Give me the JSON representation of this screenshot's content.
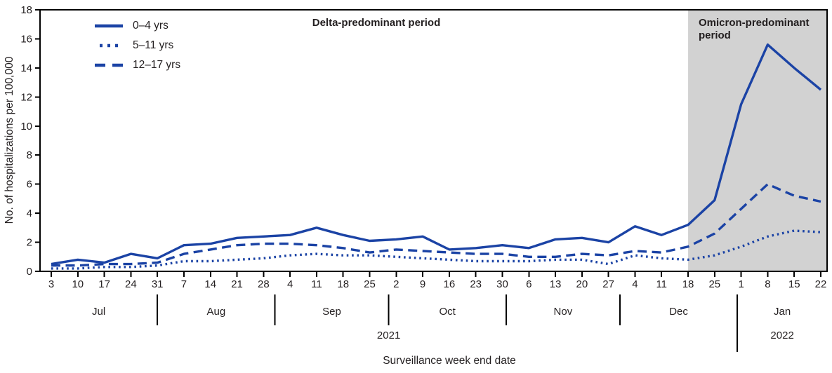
{
  "figure": {
    "ylabel": "No. of hospitalizations per 100,000",
    "xlabel": "Surveillance week end date",
    "delta_period_label": "Delta-predominant period",
    "omicron_period_label": "Omicron-predominant period"
  },
  "chart_data": {
    "type": "line",
    "title": "",
    "xlabel": "Surveillance week end date",
    "ylabel": "No. of hospitalizations per 100,000",
    "ylim": [
      0,
      18
    ],
    "yticks": [
      0,
      2,
      4,
      6,
      8,
      10,
      12,
      14,
      16,
      18
    ],
    "grid": false,
    "legend_position": "top-left-inside",
    "months": [
      {
        "label": "Jul",
        "weeks": [
          "3",
          "10",
          "17",
          "24",
          "31"
        ]
      },
      {
        "label": "Aug",
        "weeks": [
          "7",
          "14",
          "21",
          "28"
        ]
      },
      {
        "label": "Sep",
        "weeks": [
          "4",
          "11",
          "18",
          "25"
        ]
      },
      {
        "label": "Oct",
        "weeks": [
          "2",
          "9",
          "16",
          "23",
          "30"
        ]
      },
      {
        "label": "Nov",
        "weeks": [
          "6",
          "13",
          "20",
          "27"
        ]
      },
      {
        "label": "Dec",
        "weeks": [
          "4",
          "11",
          "18",
          "25"
        ]
      },
      {
        "label": "Jan",
        "weeks": [
          "1",
          "8",
          "15",
          "22"
        ]
      }
    ],
    "years": [
      "2021",
      "2022"
    ],
    "omicron_start_week_index": 24,
    "series": [
      {
        "name": "0–4 yrs",
        "style": "solid",
        "values": [
          0.5,
          0.8,
          0.6,
          1.2,
          0.9,
          1.8,
          1.9,
          2.3,
          2.4,
          2.5,
          3.0,
          2.5,
          2.1,
          2.2,
          2.4,
          1.5,
          1.6,
          1.8,
          1.6,
          2.2,
          2.3,
          2.0,
          3.1,
          2.5,
          3.2,
          4.9,
          11.5,
          15.6,
          14.0,
          12.5
        ]
      },
      {
        "name": "5–11 yrs",
        "style": "dotted",
        "values": [
          0.2,
          0.2,
          0.3,
          0.3,
          0.4,
          0.7,
          0.7,
          0.8,
          0.9,
          1.1,
          1.2,
          1.1,
          1.1,
          1.0,
          0.9,
          0.8,
          0.7,
          0.7,
          0.7,
          0.8,
          0.8,
          0.5,
          1.1,
          0.9,
          0.8,
          1.1,
          1.7,
          2.4,
          2.8,
          2.7
        ]
      },
      {
        "name": "12–17 yrs",
        "style": "dashed",
        "values": [
          0.4,
          0.4,
          0.5,
          0.5,
          0.6,
          1.2,
          1.5,
          1.8,
          1.9,
          1.9,
          1.8,
          1.6,
          1.3,
          1.5,
          1.4,
          1.3,
          1.2,
          1.2,
          1.0,
          1.0,
          1.2,
          1.1,
          1.4,
          1.3,
          1.7,
          2.6,
          4.3,
          6.0,
          5.2,
          4.8
        ]
      }
    ],
    "colors": {
      "line_blue": "#1b43a5",
      "shade_gray": "#d2d2d2",
      "axis_black": "#000000",
      "text_ink": "#231f20"
    }
  }
}
